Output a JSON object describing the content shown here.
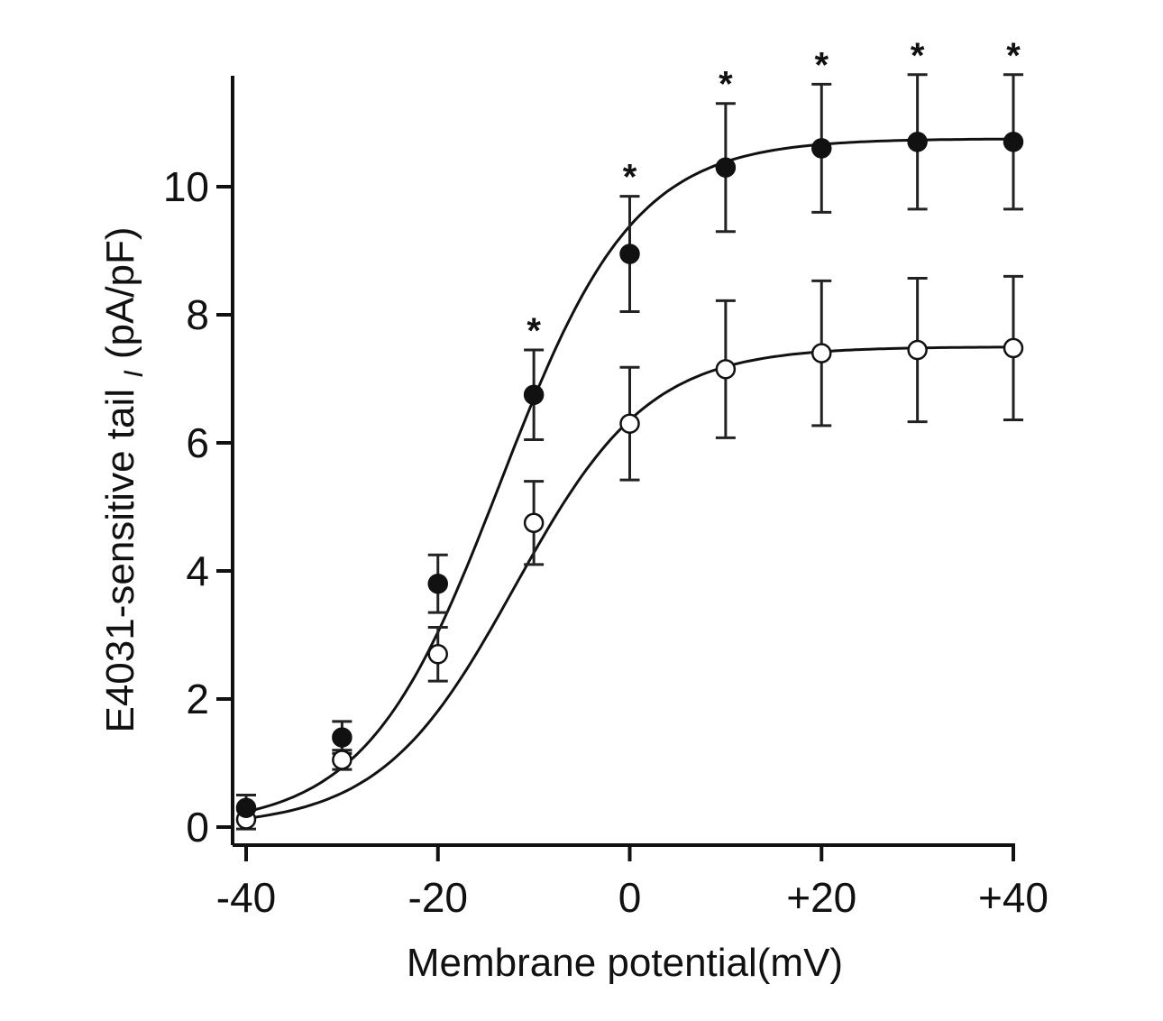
{
  "chart_data": {
    "type": "scatter",
    "xlabel": "Membrane potential(mV)",
    "ylabel_main": "E4031-sensitive tail ",
    "ylabel_sub": "I",
    "ylabel_unit": " (pA/pF)",
    "xlim": [
      -40,
      40
    ],
    "ylim": [
      0,
      11.8
    ],
    "x_ticks": [
      -40,
      -20,
      0,
      20,
      40
    ],
    "x_tick_labels": [
      "-40",
      "-20",
      "0",
      "+20",
      "+40"
    ],
    "y_ticks": [
      0,
      2,
      4,
      6,
      8,
      10
    ],
    "y_tick_labels": [
      "0",
      "2",
      "4",
      "6",
      "8",
      "10"
    ],
    "grid": false,
    "x": [
      -40,
      -30,
      -20,
      -10,
      0,
      10,
      20,
      30,
      40
    ],
    "series": [
      {
        "marker": "filled-circle",
        "color": "#111111",
        "values": [
          0.3,
          1.4,
          3.8,
          6.75,
          8.95,
          10.3,
          10.6,
          10.7,
          10.7
        ],
        "errors": [
          0.2,
          0.25,
          0.45,
          0.7,
          0.9,
          1.0,
          1.0,
          1.05,
          1.05
        ],
        "fit": {
          "max": 10.75,
          "v_half": -13.5,
          "k": 7.0
        }
      },
      {
        "marker": "open-circle",
        "color": "#111111",
        "values": [
          0.12,
          1.05,
          2.7,
          4.75,
          6.3,
          7.15,
          7.4,
          7.45,
          7.48
        ],
        "errors": [
          0.15,
          0.15,
          0.42,
          0.65,
          0.88,
          1.07,
          1.13,
          1.12,
          1.12
        ],
        "fit": {
          "max": 7.5,
          "v_half": -12.0,
          "k": 7.0
        }
      }
    ],
    "annotations": [
      {
        "x": -10,
        "text": "*"
      },
      {
        "x": 0,
        "text": "*"
      },
      {
        "x": 10,
        "text": "*"
      },
      {
        "x": 20,
        "text": "*"
      },
      {
        "x": 30,
        "text": "*"
      },
      {
        "x": 40,
        "text": "*"
      }
    ]
  }
}
